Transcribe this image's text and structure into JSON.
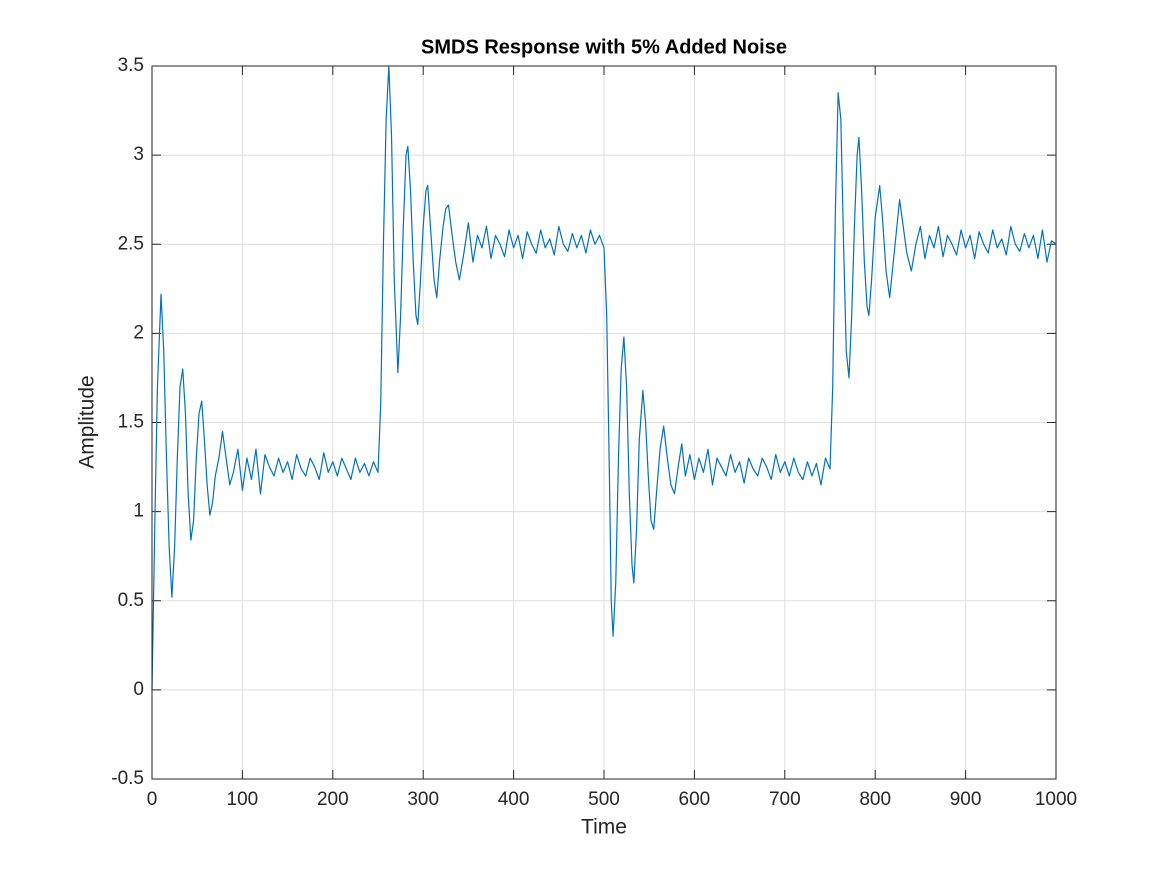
{
  "chart_data": {
    "type": "line",
    "title": "SMDS Response with 5% Added Noise",
    "x_label": "Time",
    "y_label": "Amplitude",
    "color": "#0072bd",
    "grid": true,
    "xlim": [
      0,
      1000
    ],
    "xticks": [
      0,
      100,
      200,
      300,
      400,
      500,
      600,
      700,
      800,
      900,
      1000
    ],
    "ylim": [
      -0.5,
      3.5
    ],
    "yticks": [
      -0.5,
      0,
      0.5,
      1,
      1.5,
      2,
      2.5,
      3,
      3.5
    ],
    "x": [
      0,
      3,
      6,
      10,
      13,
      16,
      19,
      22,
      25,
      28,
      31,
      34,
      37,
      40,
      43,
      46,
      49,
      52,
      55,
      58,
      61,
      64,
      67,
      70,
      74,
      78,
      82,
      86,
      90,
      95,
      100,
      105,
      110,
      115,
      120,
      125,
      130,
      135,
      140,
      145,
      150,
      155,
      160,
      165,
      170,
      175,
      180,
      185,
      190,
      195,
      200,
      205,
      210,
      215,
      220,
      225,
      230,
      235,
      240,
      245,
      250,
      253,
      256,
      259,
      262,
      265,
      268,
      272,
      275,
      278,
      281,
      283,
      286,
      289,
      292,
      294,
      297,
      300,
      303,
      305,
      308,
      312,
      315,
      318,
      322,
      325,
      328,
      332,
      336,
      340,
      345,
      350,
      355,
      360,
      365,
      370,
      375,
      380,
      385,
      390,
      395,
      400,
      405,
      410,
      415,
      420,
      425,
      430,
      435,
      440,
      445,
      450,
      455,
      460,
      465,
      470,
      475,
      480,
      485,
      490,
      495,
      500,
      503,
      506,
      508,
      510,
      513,
      516,
      519,
      522,
      525,
      528,
      531,
      533,
      536,
      539,
      543,
      546,
      549,
      552,
      555,
      558,
      562,
      566,
      570,
      574,
      578,
      582,
      586,
      590,
      595,
      600,
      605,
      610,
      615,
      620,
      625,
      630,
      635,
      640,
      645,
      650,
      655,
      660,
      665,
      670,
      675,
      680,
      685,
      690,
      695,
      700,
      705,
      710,
      715,
      720,
      725,
      730,
      735,
      740,
      745,
      750,
      753,
      756,
      759,
      762,
      765,
      768,
      771,
      774,
      777,
      780,
      782,
      785,
      788,
      791,
      793,
      796,
      800,
      805,
      808,
      812,
      816,
      820,
      824,
      827,
      831,
      835,
      840,
      845,
      850,
      855,
      860,
      865,
      870,
      875,
      880,
      885,
      890,
      895,
      900,
      905,
      910,
      915,
      920,
      925,
      930,
      935,
      940,
      945,
      950,
      955,
      960,
      965,
      970,
      975,
      980,
      985,
      990,
      995,
      1000
    ],
    "values": [
      0,
      0.9,
      1.7,
      2.22,
      1.9,
      1.3,
      0.8,
      0.52,
      0.8,
      1.3,
      1.7,
      1.8,
      1.55,
      1.1,
      0.84,
      0.95,
      1.3,
      1.55,
      1.62,
      1.4,
      1.15,
      0.98,
      1.05,
      1.2,
      1.3,
      1.45,
      1.3,
      1.15,
      1.22,
      1.35,
      1.12,
      1.3,
      1.18,
      1.35,
      1.1,
      1.32,
      1.25,
      1.2,
      1.3,
      1.22,
      1.28,
      1.18,
      1.32,
      1.24,
      1.2,
      1.3,
      1.25,
      1.18,
      1.33,
      1.22,
      1.28,
      1.2,
      1.3,
      1.24,
      1.18,
      1.3,
      1.22,
      1.27,
      1.2,
      1.28,
      1.22,
      1.6,
      2.5,
      3.2,
      3.5,
      3.1,
      2.3,
      1.78,
      2.1,
      2.6,
      3.0,
      3.05,
      2.8,
      2.4,
      2.1,
      2.05,
      2.3,
      2.6,
      2.8,
      2.83,
      2.6,
      2.3,
      2.2,
      2.4,
      2.6,
      2.7,
      2.72,
      2.55,
      2.4,
      2.3,
      2.45,
      2.62,
      2.4,
      2.55,
      2.48,
      2.6,
      2.42,
      2.55,
      2.5,
      2.43,
      2.58,
      2.48,
      2.55,
      2.42,
      2.57,
      2.5,
      2.45,
      2.58,
      2.48,
      2.53,
      2.44,
      2.6,
      2.5,
      2.46,
      2.56,
      2.48,
      2.55,
      2.45,
      2.58,
      2.5,
      2.55,
      2.48,
      2.1,
      1.2,
      0.5,
      0.3,
      0.6,
      1.3,
      1.8,
      1.98,
      1.7,
      1.1,
      0.7,
      0.6,
      0.9,
      1.4,
      1.68,
      1.5,
      1.2,
      0.95,
      0.9,
      1.1,
      1.35,
      1.48,
      1.3,
      1.15,
      1.1,
      1.25,
      1.38,
      1.2,
      1.32,
      1.18,
      1.3,
      1.22,
      1.35,
      1.15,
      1.3,
      1.25,
      1.2,
      1.32,
      1.22,
      1.28,
      1.16,
      1.3,
      1.24,
      1.2,
      1.3,
      1.25,
      1.18,
      1.32,
      1.22,
      1.28,
      1.2,
      1.3,
      1.22,
      1.18,
      1.28,
      1.2,
      1.27,
      1.15,
      1.3,
      1.24,
      1.7,
      2.7,
      3.35,
      3.2,
      2.5,
      1.9,
      1.75,
      2.1,
      2.6,
      3.0,
      3.1,
      2.8,
      2.4,
      2.15,
      2.1,
      2.3,
      2.65,
      2.83,
      2.65,
      2.35,
      2.2,
      2.4,
      2.6,
      2.75,
      2.6,
      2.45,
      2.35,
      2.5,
      2.6,
      2.42,
      2.55,
      2.48,
      2.6,
      2.43,
      2.55,
      2.5,
      2.44,
      2.58,
      2.48,
      2.55,
      2.42,
      2.57,
      2.5,
      2.45,
      2.58,
      2.48,
      2.53,
      2.44,
      2.6,
      2.5,
      2.46,
      2.56,
      2.48,
      2.55,
      2.42,
      2.58,
      2.4,
      2.52,
      2.5
    ]
  }
}
